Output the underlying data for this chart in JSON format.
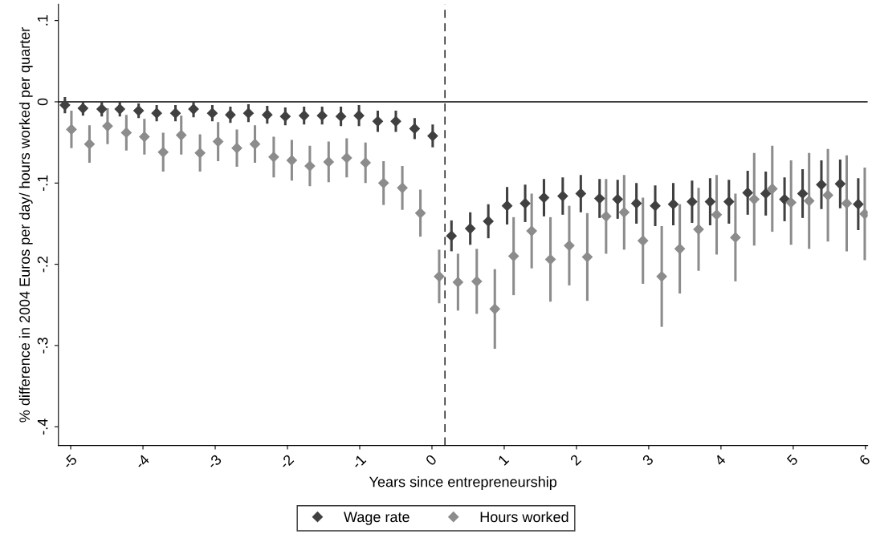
{
  "chart_data": {
    "type": "scatter",
    "xlabel": "Years since entrepreneurship",
    "ylabel": "% difference in 2004 Euros per day/ hours worked per quarter",
    "xlim": [
      -5.17,
      6.03
    ],
    "ylim": [
      -0.423,
      0.12
    ],
    "xticks": [
      -5,
      -4,
      -3,
      -2,
      -1,
      0,
      1,
      2,
      3,
      4,
      5,
      6
    ],
    "yticks": [
      {
        "value": 0.1,
        "label": ".1"
      },
      0,
      {
        "value": -0.1,
        "label": "-.1"
      },
      {
        "value": -0.2,
        "label": "-.2"
      },
      {
        "value": -0.3,
        "label": "-.3"
      },
      {
        "value": -0.4,
        "label": "-.4"
      }
    ],
    "grid": false,
    "legend": "bottom",
    "marker": "diamond",
    "ref_lines": [
      {
        "axis": "y",
        "value": 0,
        "color": "#000000",
        "line_style": "solid"
      },
      {
        "axis": "x",
        "value": 0.18,
        "color": "#333333",
        "line_style": "dashed"
      }
    ],
    "series": [
      {
        "name": "Wage rate",
        "color": "#404040",
        "x": [
          -5.08,
          -4.83,
          -4.57,
          -4.32,
          -4.06,
          -3.81,
          -3.55,
          -3.3,
          -3.04,
          -2.79,
          -2.54,
          -2.28,
          -2.03,
          -1.77,
          -1.52,
          -1.26,
          -1.01,
          -0.75,
          -0.5,
          -0.24,
          0.01,
          0.27,
          0.53,
          0.78,
          1.04,
          1.29,
          1.55,
          1.81,
          2.06,
          2.32,
          2.57,
          2.83,
          3.09,
          3.34,
          3.6,
          3.85,
          4.11,
          4.37,
          4.62,
          4.88,
          5.13,
          5.39,
          5.65,
          5.9
        ],
        "values": [
          -0.004,
          -0.008,
          -0.009,
          -0.009,
          -0.011,
          -0.014,
          -0.014,
          -0.009,
          -0.014,
          -0.016,
          -0.014,
          -0.016,
          -0.018,
          -0.017,
          -0.017,
          -0.018,
          -0.017,
          -0.024,
          -0.024,
          -0.033,
          -0.042,
          -0.165,
          -0.156,
          -0.147,
          -0.128,
          -0.125,
          -0.118,
          -0.116,
          -0.113,
          -0.119,
          -0.12,
          -0.125,
          -0.128,
          -0.126,
          -0.123,
          -0.123,
          -0.123,
          -0.112,
          -0.113,
          -0.12,
          -0.113,
          -0.102,
          -0.101,
          -0.126
        ],
        "errors": [
          0.01,
          0.009,
          0.009,
          0.009,
          0.009,
          0.01,
          0.01,
          0.01,
          0.01,
          0.01,
          0.011,
          0.011,
          0.011,
          0.011,
          0.011,
          0.012,
          0.013,
          0.013,
          0.013,
          0.013,
          0.014,
          0.019,
          0.02,
          0.021,
          0.023,
          0.023,
          0.023,
          0.023,
          0.023,
          0.024,
          0.024,
          0.025,
          0.025,
          0.026,
          0.026,
          0.029,
          0.027,
          0.027,
          0.027,
          0.027,
          0.03,
          0.03,
          0.03,
          0.032
        ]
      },
      {
        "name": "Hours worked",
        "color": "#8c8c8c",
        "x": [
          -4.99,
          -4.74,
          -4.49,
          -4.23,
          -3.98,
          -3.72,
          -3.47,
          -3.21,
          -2.96,
          -2.7,
          -2.45,
          -2.19,
          -1.94,
          -1.69,
          -1.43,
          -1.18,
          -0.92,
          -0.67,
          -0.41,
          -0.16,
          0.1,
          0.36,
          0.62,
          0.87,
          1.13,
          1.38,
          1.64,
          1.9,
          2.15,
          2.41,
          2.66,
          2.92,
          3.18,
          3.43,
          3.69,
          3.94,
          4.2,
          4.46,
          4.71,
          4.97,
          5.22,
          5.48,
          5.74,
          5.99
        ],
        "values": [
          -0.034,
          -0.052,
          -0.03,
          -0.038,
          -0.043,
          -0.062,
          -0.041,
          -0.063,
          -0.049,
          -0.057,
          -0.052,
          -0.068,
          -0.072,
          -0.079,
          -0.074,
          -0.069,
          -0.075,
          -0.1,
          -0.106,
          -0.137,
          -0.215,
          -0.222,
          -0.221,
          -0.255,
          -0.19,
          -0.159,
          -0.194,
          -0.177,
          -0.191,
          -0.141,
          -0.136,
          -0.171,
          -0.215,
          -0.181,
          -0.157,
          -0.139,
          -0.167,
          -0.12,
          -0.107,
          -0.124,
          -0.122,
          -0.115,
          -0.125,
          -0.138
        ],
        "errors": [
          0.023,
          0.023,
          0.022,
          0.022,
          0.022,
          0.024,
          0.024,
          0.023,
          0.024,
          0.023,
          0.023,
          0.025,
          0.025,
          0.025,
          0.025,
          0.024,
          0.025,
          0.027,
          0.027,
          0.029,
          0.033,
          0.035,
          0.04,
          0.049,
          0.048,
          0.046,
          0.052,
          0.049,
          0.054,
          0.046,
          0.046,
          0.053,
          0.062,
          0.055,
          0.051,
          0.049,
          0.054,
          0.057,
          0.053,
          0.052,
          0.059,
          0.057,
          0.059,
          0.057
        ]
      }
    ]
  }
}
